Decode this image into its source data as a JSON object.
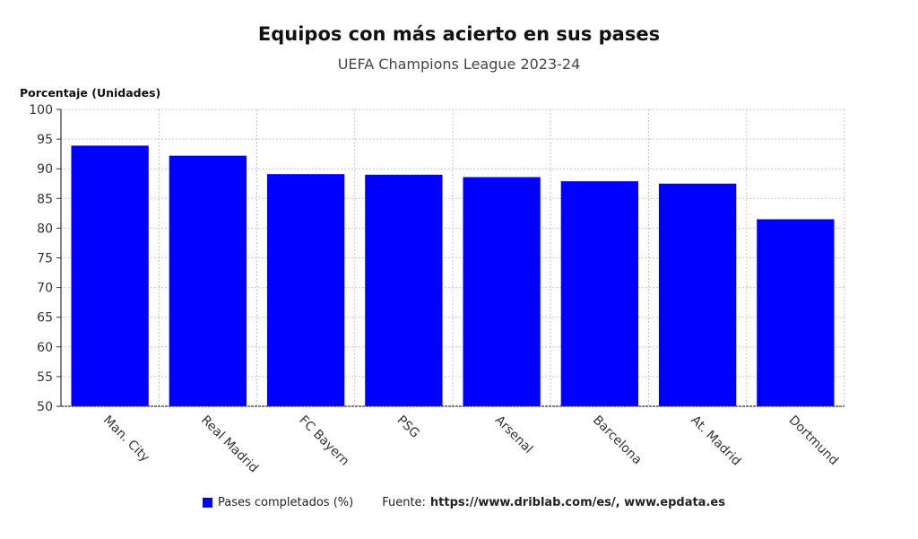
{
  "chart_data": {
    "type": "bar",
    "title": "Equipos con más acierto en sus pases",
    "subtitle": "UEFA Champions League 2023-24",
    "ylabel": "Porcentaje (Unidades)",
    "xlabel": "",
    "categories": [
      "Man. City",
      "Real Madrid",
      "FC Bayern",
      "PSG",
      "Arsenal",
      "Barcelona",
      "At. Madrid",
      "Dortmund"
    ],
    "series": [
      {
        "name": "Pases completados (%)",
        "values": [
          93.9,
          92.2,
          89.1,
          89.0,
          88.6,
          87.9,
          87.5,
          81.5
        ],
        "color": "#0000ff"
      }
    ],
    "ylim": [
      50,
      100
    ],
    "yticks": [
      50,
      55,
      60,
      65,
      70,
      75,
      80,
      85,
      90,
      95,
      100
    ],
    "grid": true,
    "legend_position": "bottom"
  },
  "legend": {
    "label": "Pases completados (%)",
    "color": "#0000ff"
  },
  "source": {
    "label": "Fuente:",
    "links": "https://www.driblab.com/es/, www.epdata.es"
  }
}
